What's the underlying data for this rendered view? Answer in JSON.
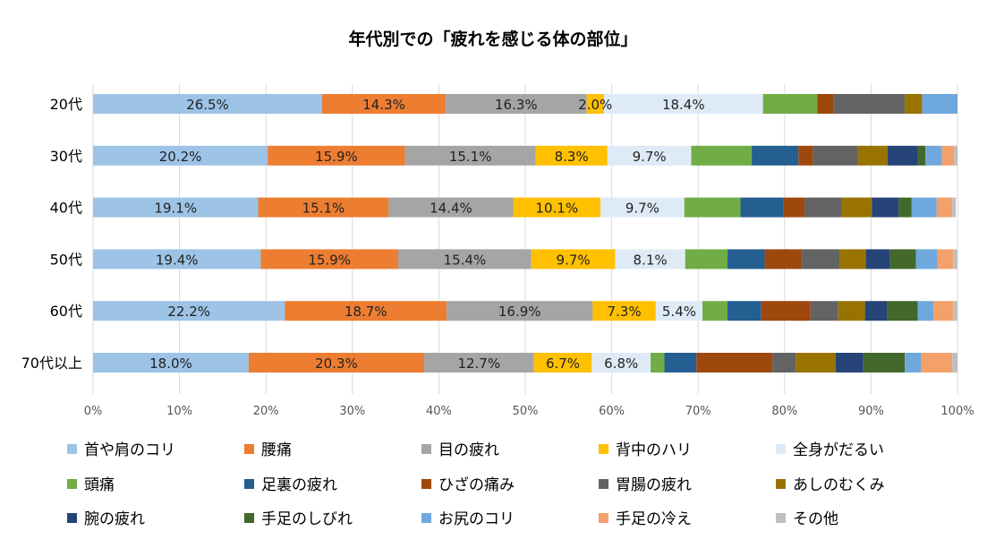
{
  "chart_data": {
    "type": "bar",
    "orientation": "horizontal",
    "stacked": "percent",
    "title": "年代別での「疲れを感じる体の部位」",
    "xlabel": "",
    "ylabel": "",
    "xlim": [
      0,
      100
    ],
    "x_ticks": [
      "0%",
      "10%",
      "20%",
      "30%",
      "40%",
      "50%",
      "60%",
      "70%",
      "80%",
      "90%",
      "100%"
    ],
    "grid": true,
    "legend_position": "bottom",
    "categories": [
      "20代",
      "30代",
      "40代",
      "50代",
      "60代",
      "70代以上"
    ],
    "series": [
      {
        "name": "首や肩のコリ",
        "color": "#9DC3E6",
        "values": [
          26.5,
          20.2,
          19.1,
          19.4,
          22.2,
          18.0
        ],
        "labels": [
          "26.5%",
          "20.2%",
          "19.1%",
          "19.4%",
          "22.2%",
          "18.0%"
        ]
      },
      {
        "name": "腰痛",
        "color": "#ED7D31",
        "values": [
          14.3,
          15.9,
          15.1,
          15.9,
          18.7,
          20.3
        ],
        "labels": [
          "14.3%",
          "15.9%",
          "15.1%",
          "15.9%",
          "18.7%",
          "20.3%"
        ]
      },
      {
        "name": "目の疲れ",
        "color": "#A5A5A5",
        "values": [
          16.3,
          15.1,
          14.4,
          15.4,
          16.9,
          12.7
        ],
        "labels": [
          "16.3%",
          "15.1%",
          "14.4%",
          "15.4%",
          "16.9%",
          "12.7%"
        ]
      },
      {
        "name": "背中のハリ",
        "color": "#FFC000",
        "values": [
          2.0,
          8.3,
          10.1,
          9.7,
          7.3,
          6.7
        ],
        "labels": [
          "2.0%",
          "8.3%",
          "10.1%",
          "9.7%",
          "7.3%",
          "6.7%"
        ]
      },
      {
        "name": "全身がだるい",
        "color": "#DEEBF7",
        "values": [
          18.4,
          9.7,
          9.7,
          8.1,
          5.4,
          6.8
        ],
        "labels": [
          "18.4%",
          "9.7%",
          "9.7%",
          "8.1%",
          "5.4%",
          "6.8%"
        ]
      },
      {
        "name": "頭痛",
        "color": "#70AD47",
        "values": [
          6.3,
          7.0,
          6.5,
          4.9,
          2.9,
          1.6
        ]
      },
      {
        "name": "足裏の疲れ",
        "color": "#255E91",
        "values": [
          0,
          5.4,
          5.0,
          4.3,
          3.9,
          3.7
        ]
      },
      {
        "name": "ひざの痛み",
        "color": "#9E480E",
        "values": [
          1.9,
          1.7,
          2.4,
          4.3,
          5.7,
          8.8
        ]
      },
      {
        "name": "胃腸の疲れ",
        "color": "#636363",
        "values": [
          8.2,
          5.2,
          4.3,
          4.4,
          3.2,
          2.7
        ]
      },
      {
        "name": "あしのむくみ",
        "color": "#997300",
        "values": [
          2.0,
          3.4,
          3.5,
          3.0,
          3.1,
          4.6
        ]
      },
      {
        "name": "腕の疲れ",
        "color": "#264478",
        "values": [
          0,
          3.5,
          3.1,
          2.8,
          2.6,
          3.2
        ]
      },
      {
        "name": "手足のしびれ",
        "color": "#43682B",
        "values": [
          0,
          0.9,
          1.5,
          3.0,
          3.5,
          4.8
        ]
      },
      {
        "name": "お尻のコリ",
        "color": "#6FA8DC",
        "values": [
          4.1,
          1.9,
          2.9,
          2.5,
          1.8,
          1.9
        ]
      },
      {
        "name": "手足の冷え",
        "color": "#F4A06B",
        "values": [
          0,
          1.4,
          1.8,
          1.8,
          2.3,
          3.6
        ]
      },
      {
        "name": "その他",
        "color": "#BFBFBF",
        "values": [
          0,
          0.4,
          0.4,
          0.5,
          0.5,
          0.6
        ]
      }
    ]
  }
}
